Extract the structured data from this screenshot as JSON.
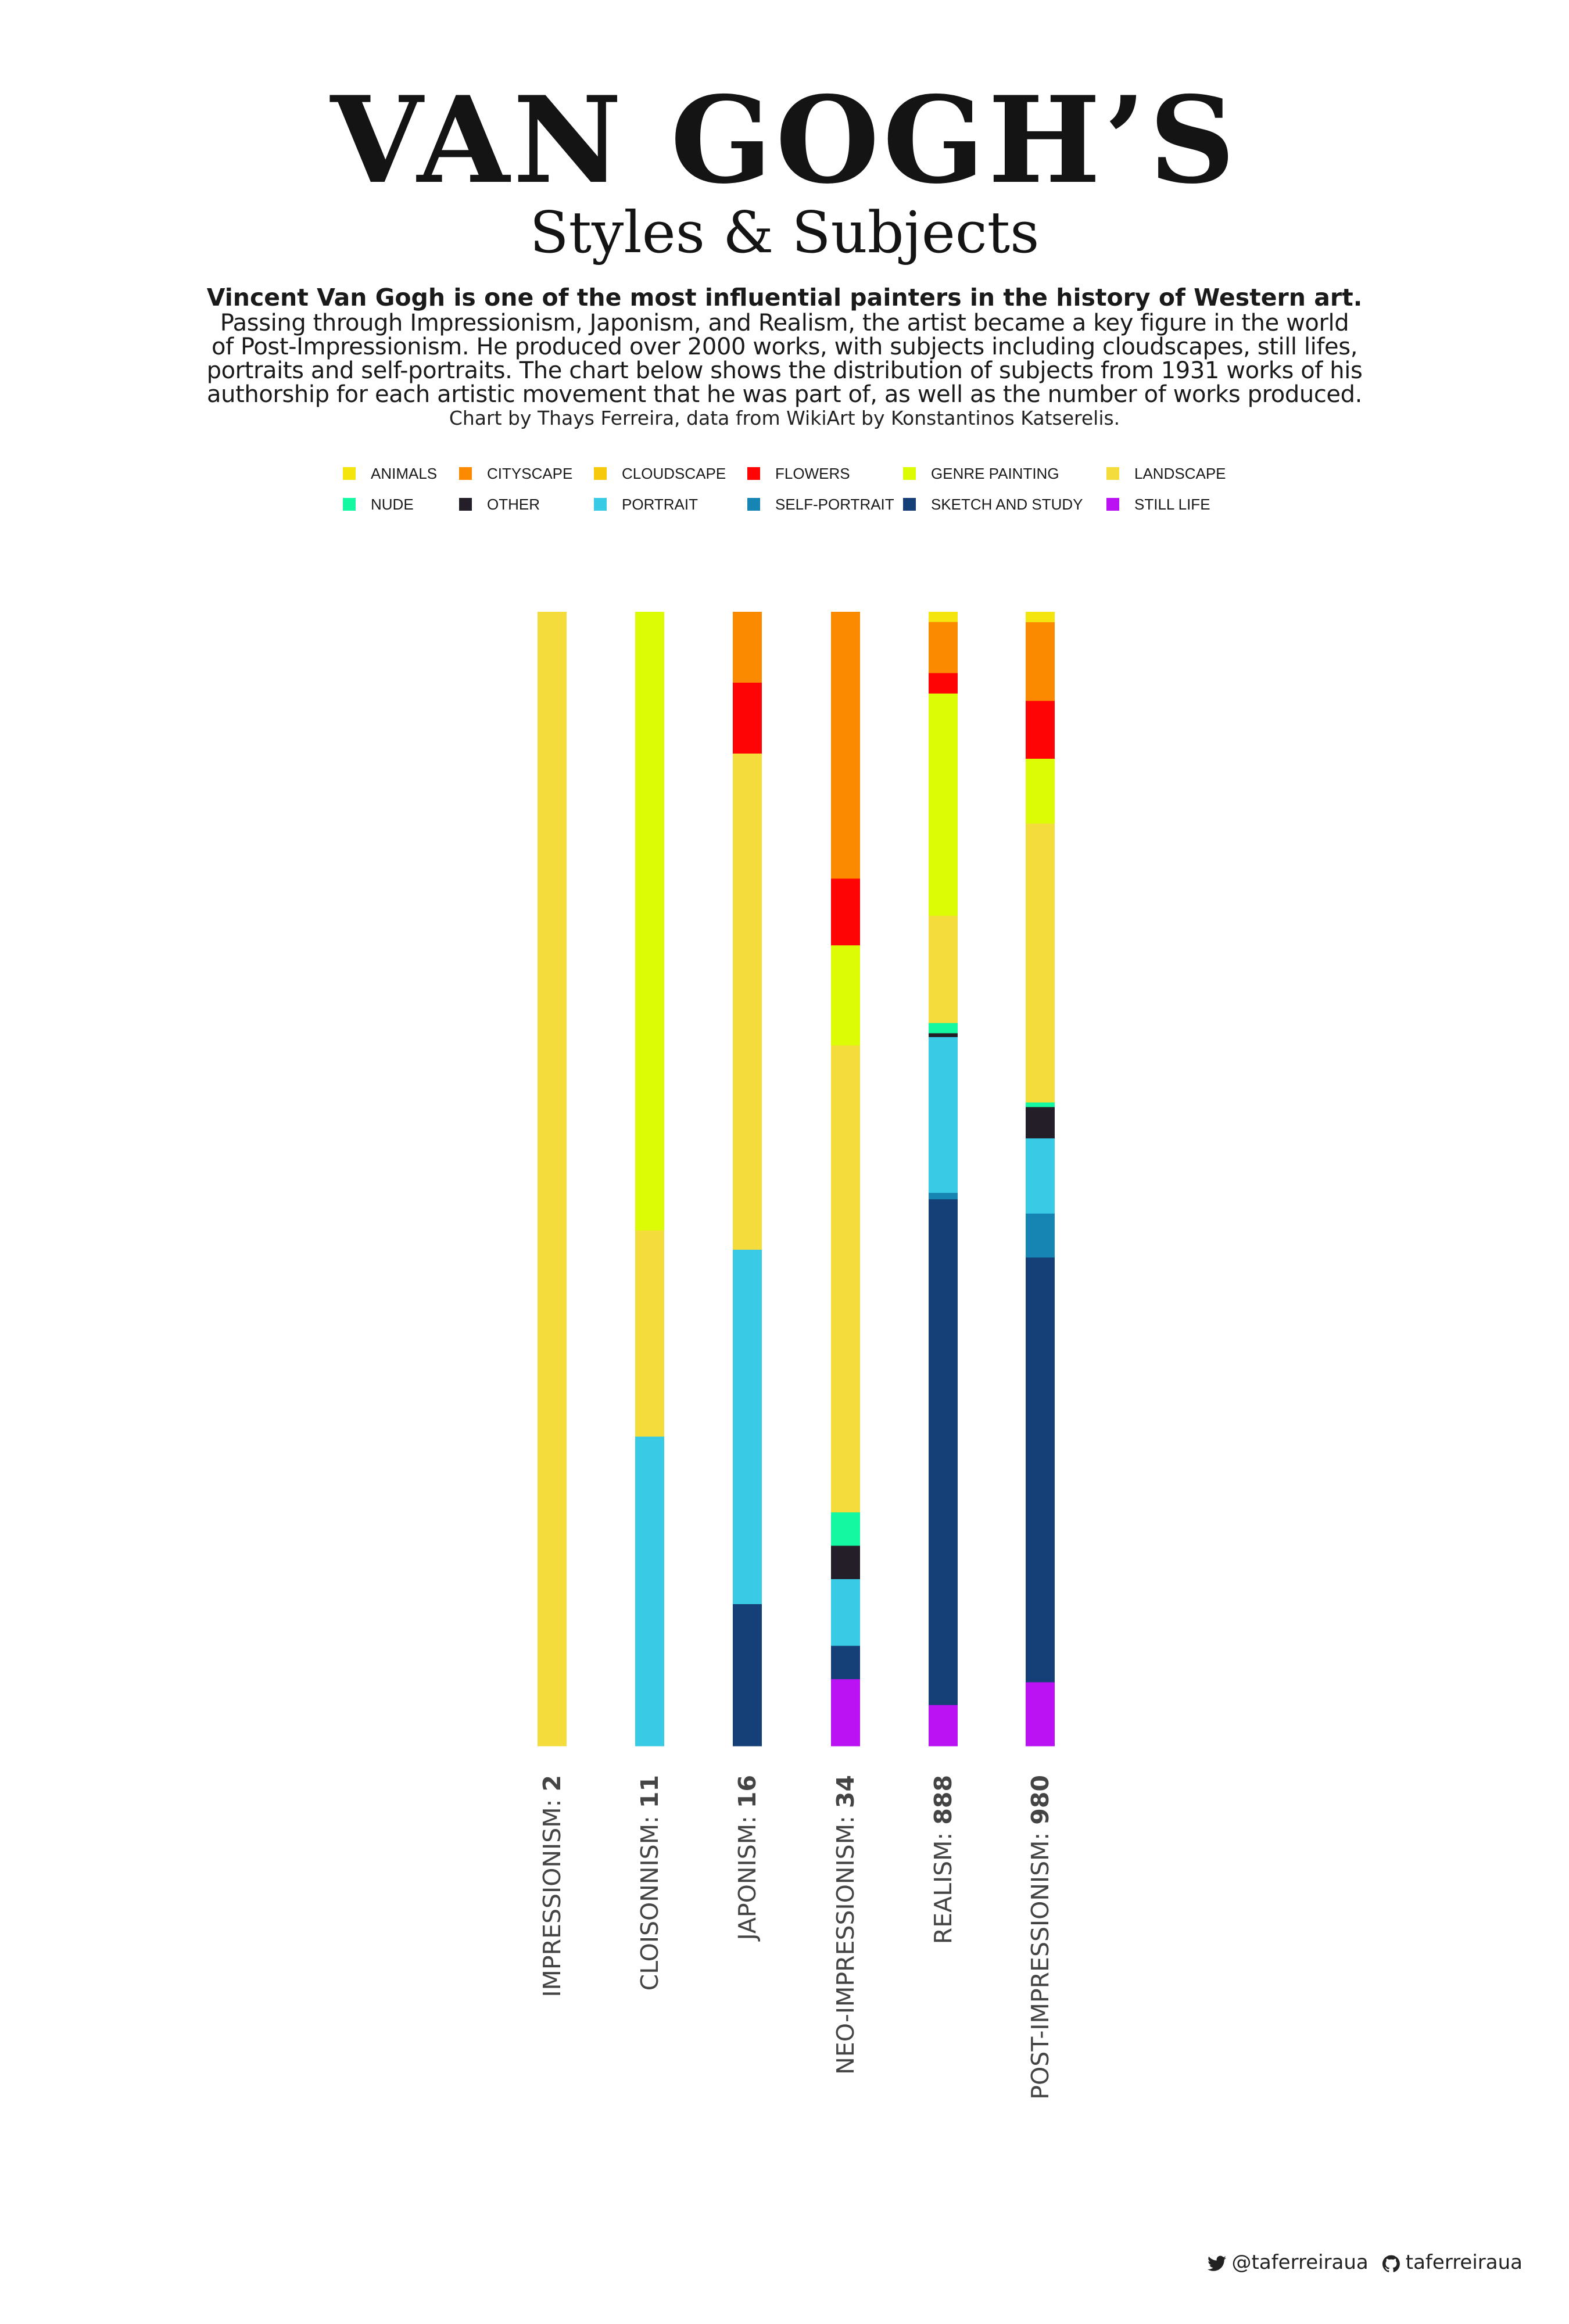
{
  "header": {
    "title": "VAN GOGH’S",
    "subtitle": "Styles & Subjects",
    "lead": "Vincent Van Gogh is one of the most influential painters in the history of Western art.",
    "body_lines": [
      "Passing through Impressionism, Japonism, and Realism, the artist became a key figure in the world",
      "of Post-Impressionism. He produced over 2000 works, with subjects including cloudscapes, still lifes,",
      "portraits and self-portraits. The chart below shows the distribution of subjects from 1931 works of his",
      "authorship for each artistic movement that he was part of, as well as the number of works produced."
    ],
    "credit": "Chart by Thays Ferreira, data from WikiArt by Konstantinos Katserelis."
  },
  "footer": {
    "twitter": "@taferreiraua",
    "github": "taferreiraua",
    "twitter_icon": "twitter-icon",
    "github_icon": "github-icon"
  },
  "chart_data": {
    "type": "bar",
    "stacked": true,
    "normalized": true,
    "legend_position": "top-center",
    "grid": false,
    "categories": [
      "IMPRESSIONISM",
      "CLOISONNISM",
      "JAPONISM",
      "NEO-IMPRESSIONISM",
      "REALISM",
      "POST-IMPRESSIONISM"
    ],
    "counts": [
      2,
      11,
      16,
      34,
      888,
      980
    ],
    "count_separator": ": ",
    "series": [
      {
        "name": "ANIMALS",
        "color": "#f5e50f",
        "values": [
          0,
          0,
          0,
          0,
          8,
          9
        ]
      },
      {
        "name": "CITYSCAPE",
        "color": "#fb8a00",
        "values": [
          0,
          0,
          1,
          8,
          40,
          68
        ]
      },
      {
        "name": "CLOUDSCAPE",
        "color": "#f6c90e",
        "values": [
          0,
          0,
          0,
          0,
          0,
          0
        ]
      },
      {
        "name": "FLOWERS",
        "color": "#fe0404",
        "values": [
          0,
          0,
          1,
          2,
          16,
          50
        ]
      },
      {
        "name": "GENRE PAINTING",
        "color": "#dcfc06",
        "values": [
          0,
          6,
          0,
          3,
          174,
          56
        ]
      },
      {
        "name": "LANDSCAPE",
        "color": "#f4dc3c",
        "values": [
          2,
          2,
          7,
          14,
          84,
          241
        ]
      },
      {
        "name": "NUDE",
        "color": "#14f8a2",
        "values": [
          0,
          0,
          0,
          1,
          8,
          4
        ]
      },
      {
        "name": "OTHER",
        "color": "#231e27",
        "values": [
          0,
          0,
          0,
          1,
          3,
          27
        ]
      },
      {
        "name": "PORTRAIT",
        "color": "#39cbe6",
        "values": [
          0,
          3,
          5,
          2,
          122,
          65
        ]
      },
      {
        "name": "SELF-PORTRAIT",
        "color": "#1785b3",
        "values": [
          0,
          0,
          0,
          0,
          5,
          38
        ]
      },
      {
        "name": "SKETCH AND STUDY",
        "color": "#143f77",
        "values": [
          0,
          0,
          2,
          1,
          396,
          367
        ]
      },
      {
        "name": "STILL LIFE",
        "color": "#bb12f4",
        "values": [
          0,
          0,
          0,
          2,
          32,
          55
        ]
      }
    ]
  }
}
